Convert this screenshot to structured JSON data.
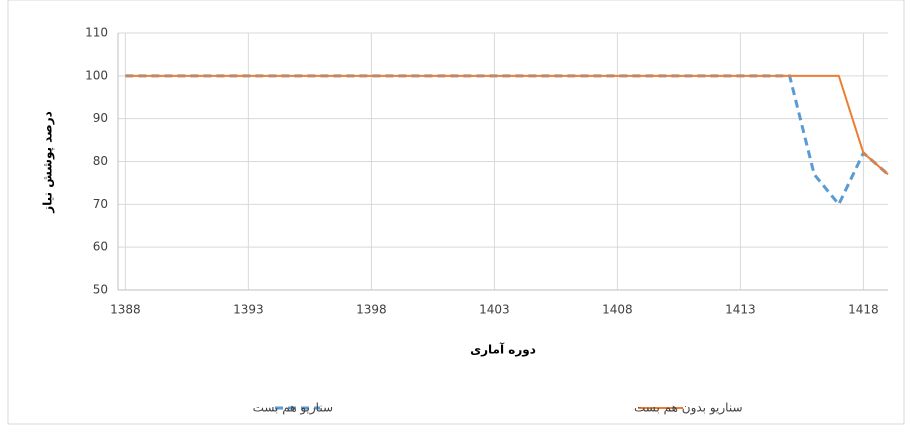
{
  "chart_data": {
    "type": "line",
    "x_label": "دوره آماری",
    "y_label": "درصد پوشش نیاز",
    "x": [
      1388,
      1389,
      1390,
      1391,
      1392,
      1393,
      1394,
      1395,
      1396,
      1397,
      1398,
      1399,
      1400,
      1401,
      1402,
      1403,
      1404,
      1405,
      1406,
      1407,
      1408,
      1409,
      1410,
      1411,
      1412,
      1413,
      1414,
      1415,
      1416,
      1417,
      1418,
      1419
    ],
    "series": [
      {
        "name": "سناریو هم بست",
        "color": "#5b9bd5",
        "dashed": true,
        "values": [
          100,
          100,
          100,
          100,
          100,
          100,
          100,
          100,
          100,
          100,
          100,
          100,
          100,
          100,
          100,
          100,
          100,
          100,
          100,
          100,
          100,
          100,
          100,
          100,
          100,
          100,
          100,
          100,
          77,
          70,
          82,
          77
        ]
      },
      {
        "name": "سناریو بدون هم بست",
        "color": "#ed7d31",
        "dashed": false,
        "values": [
          100,
          100,
          100,
          100,
          100,
          100,
          100,
          100,
          100,
          100,
          100,
          100,
          100,
          100,
          100,
          100,
          100,
          100,
          100,
          100,
          100,
          100,
          100,
          100,
          100,
          100,
          100,
          100,
          100,
          100,
          82,
          77
        ]
      }
    ],
    "xlim": [
      1387.7,
      1419
    ],
    "xticks": [
      1388,
      1393,
      1398,
      1403,
      1408,
      1413,
      1418
    ],
    "ylim": [
      50,
      110
    ],
    "yticks": [
      50,
      60,
      70,
      80,
      90,
      100,
      110
    ],
    "grid": true,
    "legend": "bottom"
  }
}
